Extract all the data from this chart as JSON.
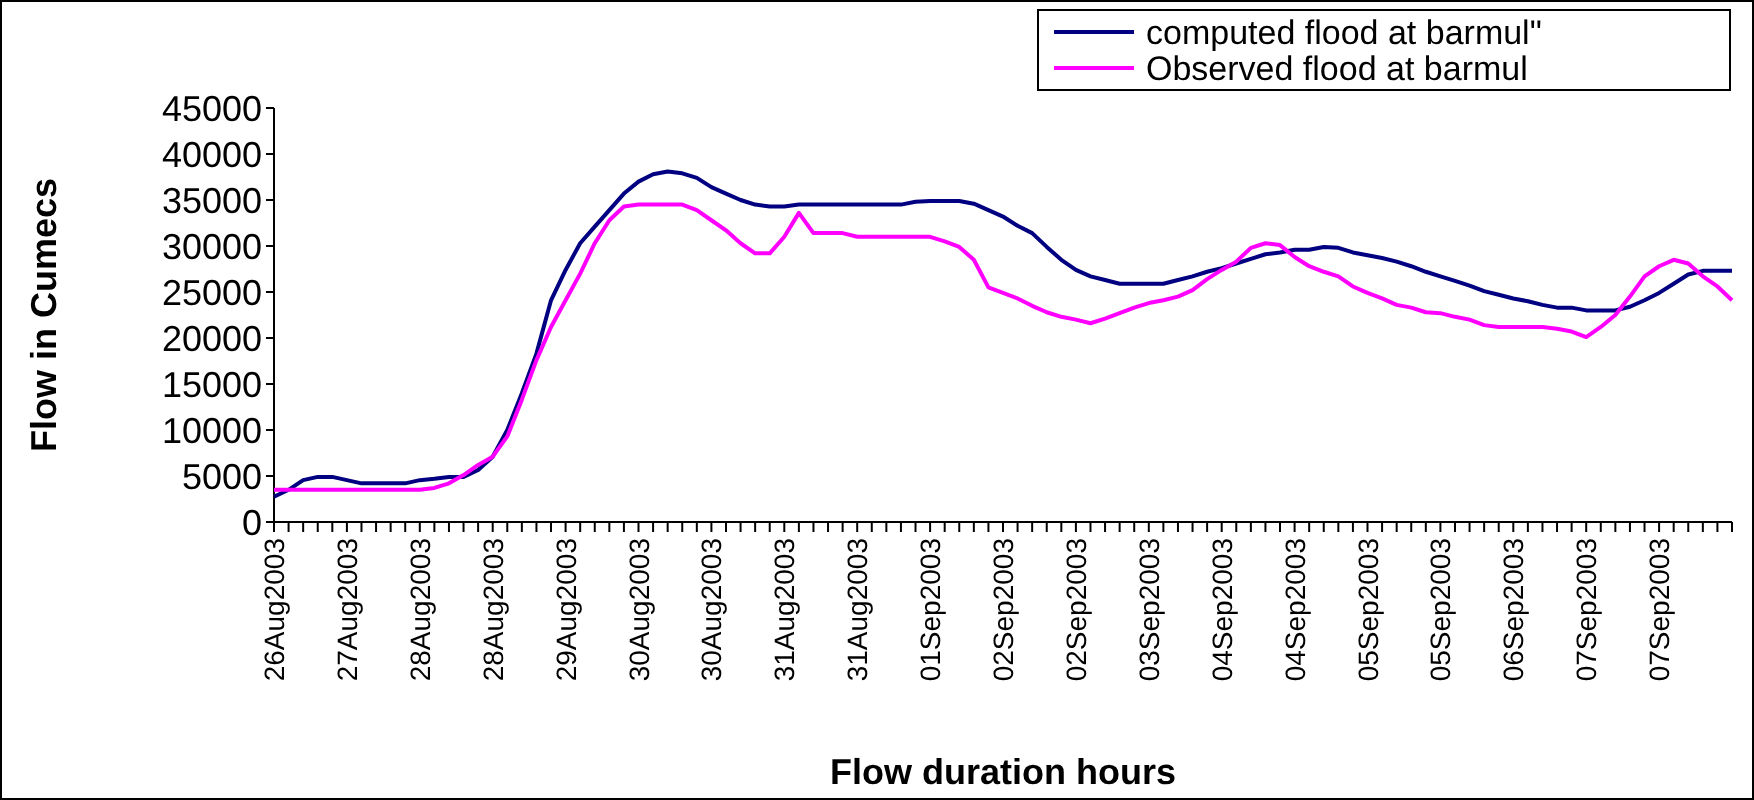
{
  "chart_data": {
    "type": "line",
    "xlabel": "Flow duration hours",
    "ylabel": "Flow in Cumecs",
    "categories": [
      "26Aug2003",
      null,
      null,
      null,
      null,
      "27Aug2003",
      null,
      null,
      null,
      null,
      "28Aug2003",
      null,
      null,
      null,
      null,
      "28Aug2003",
      null,
      null,
      null,
      null,
      "29Aug2003",
      null,
      null,
      null,
      null,
      "30Aug2003",
      null,
      null,
      null,
      null,
      "30Aug2003",
      null,
      null,
      null,
      null,
      "31Aug2003",
      null,
      null,
      null,
      null,
      "31Aug2003",
      null,
      null,
      null,
      null,
      "01Sep2003",
      null,
      null,
      null,
      null,
      "02Sep2003",
      null,
      null,
      null,
      null,
      "02Sep2003",
      null,
      null,
      null,
      null,
      "03Sep2003",
      null,
      null,
      null,
      null,
      "04Sep2003",
      null,
      null,
      null,
      null,
      "04Sep2003",
      null,
      null,
      null,
      null,
      "05Sep2003",
      null,
      null,
      null,
      null,
      "05Sep2003",
      null,
      null,
      null,
      null,
      "06Sep2003",
      null,
      null,
      null,
      null,
      "07Sep2003",
      null,
      null,
      null,
      null,
      "07Sep2003",
      null,
      null,
      null,
      null,
      null
    ],
    "series": [
      {
        "name": "computed flood at barmul\"",
        "color": "#000080",
        "values": [
          2750,
          3500,
          4550,
          4900,
          4900,
          4550,
          4200,
          4200,
          4200,
          4200,
          4550,
          4700,
          4900,
          4900,
          5650,
          7100,
          10000,
          14000,
          18300,
          24100,
          27400,
          30300,
          32100,
          33900,
          35700,
          37000,
          37800,
          38100,
          37900,
          37400,
          36400,
          35700,
          35000,
          34500,
          34300,
          34300,
          34500,
          34500,
          34500,
          34500,
          34500,
          34500,
          34500,
          34500,
          34800,
          34900,
          34900,
          34900,
          34600,
          33900,
          33200,
          32200,
          31400,
          29900,
          28500,
          27400,
          26700,
          26300,
          25900,
          25900,
          25900,
          25900,
          26300,
          26700,
          27200,
          27600,
          28100,
          28600,
          29100,
          29300,
          29600,
          29600,
          29900,
          29800,
          29300,
          29000,
          28700,
          28300,
          27800,
          27200,
          26700,
          26200,
          25700,
          25100,
          24700,
          24300,
          24000,
          23600,
          23300,
          23300,
          23000,
          23000,
          23000,
          23400,
          24100,
          24900,
          25900,
          26900,
          27300,
          27300,
          27300
        ]
      },
      {
        "name": "Observed flood at barmul",
        "color": "#ff00ff",
        "values": [
          3500,
          3500,
          3500,
          3500,
          3500,
          3500,
          3500,
          3500,
          3500,
          3500,
          3500,
          3700,
          4200,
          5100,
          6200,
          7100,
          9300,
          13300,
          17600,
          21200,
          24100,
          27000,
          30300,
          32800,
          34300,
          34500,
          34500,
          34500,
          34500,
          33900,
          32800,
          31700,
          30300,
          29200,
          29200,
          31000,
          33600,
          31400,
          31400,
          31400,
          31000,
          31000,
          31000,
          31000,
          31000,
          31000,
          30500,
          29900,
          28500,
          25500,
          24900,
          24300,
          23500,
          22800,
          22300,
          22000,
          21600,
          22100,
          22700,
          23300,
          23800,
          24100,
          24500,
          25200,
          26400,
          27400,
          28300,
          29800,
          30300,
          30100,
          28800,
          27800,
          27200,
          26700,
          25600,
          24900,
          24300,
          23600,
          23300,
          22800,
          22700,
          22300,
          22000,
          21400,
          21200,
          21200,
          21200,
          21200,
          21000,
          20700,
          20100,
          21200,
          22500,
          24500,
          26700,
          27800,
          28500,
          28100,
          26700,
          25600,
          24100
        ]
      }
    ],
    "ylim": [
      0,
      45000
    ],
    "yticks": [
      0,
      5000,
      10000,
      15000,
      20000,
      25000,
      30000,
      35000,
      40000,
      45000
    ],
    "grid": false,
    "legend": "top right",
    "marker": "none",
    "line_style": "solid"
  }
}
